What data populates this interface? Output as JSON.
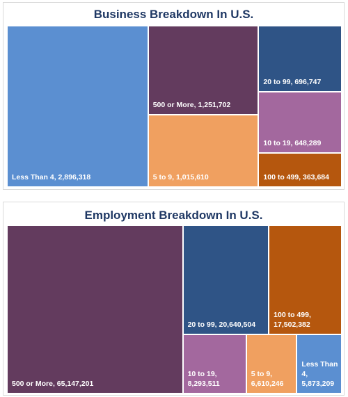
{
  "colors": {
    "blue": "#5b8fd1",
    "plum": "#633b5e",
    "navy": "#2f5486",
    "orange": "#f0a060",
    "mauve": "#a3689e",
    "rust": "#b5570e",
    "title": "#1f3864"
  },
  "chart_data": [
    {
      "type": "treemap",
      "title": "Business Breakdown In U.S.",
      "items": [
        {
          "name": "Less Than 4",
          "value": 2896318,
          "label": "Less Than 4, 2,896,318",
          "color": "#5b8fd1"
        },
        {
          "name": "500 or More",
          "value": 1251702,
          "label": "500 or More, 1,251,702",
          "color": "#633b5e"
        },
        {
          "name": "5 to 9",
          "value": 1015610,
          "label": "5 to 9, 1,015,610",
          "color": "#f0a060"
        },
        {
          "name": "20 to 99",
          "value": 696747,
          "label": "20 to 99, 696,747",
          "color": "#2f5486"
        },
        {
          "name": "10 to 19",
          "value": 648289,
          "label": "10 to 19, 648,289",
          "color": "#a3689e"
        },
        {
          "name": "100 to 499",
          "value": 363684,
          "label": "100 to 499, 363,684",
          "color": "#b5570e"
        }
      ]
    },
    {
      "type": "treemap",
      "title": "Employment Breakdown In U.S.",
      "items": [
        {
          "name": "500 or More",
          "value": 65147201,
          "label": "500 or More, 65,147,201",
          "color": "#633b5e"
        },
        {
          "name": "20 to 99",
          "value": 20640504,
          "label": "20 to 99, 20,640,504",
          "color": "#2f5486"
        },
        {
          "name": "100 to 499",
          "value": 17502382,
          "label": "100 to 499, 17,502,382",
          "color": "#b5570e"
        },
        {
          "name": "10 to 19",
          "value": 8293511,
          "label": "10 to 19, 8,293,511",
          "color": "#a3689e"
        },
        {
          "name": "5 to 9",
          "value": 6610246,
          "label": "5 to 9, 6,610,246",
          "color": "#f0a060"
        },
        {
          "name": "Less Than 4",
          "value": 5873209,
          "label": "Less Than 4, 5,873,209",
          "color": "#5b8fd1"
        }
      ]
    }
  ]
}
